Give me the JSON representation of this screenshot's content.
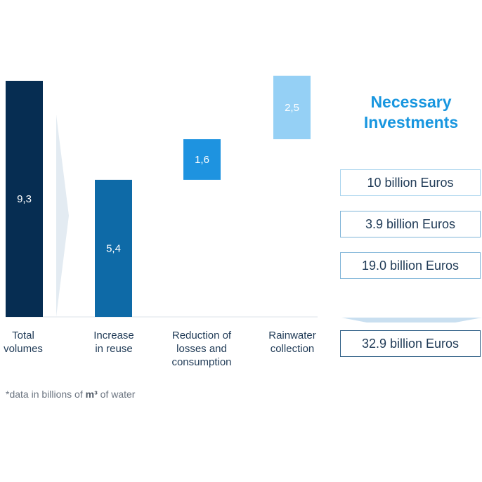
{
  "chart_data": {
    "type": "bar",
    "categories": [
      "Total\nvolumes",
      "Increase\nin reuse",
      "Reduction of\nlosses and\nconsumption",
      "Rainwater\ncollection"
    ],
    "values": [
      9.3,
      5.4,
      1.6,
      2.5
    ],
    "value_labels": [
      "9,3",
      "5,4",
      "1,6",
      "2,5"
    ],
    "colors": [
      "#062d52",
      "#0e6aa7",
      "#1e93e0",
      "#95d0f5"
    ],
    "ylim": [
      0,
      9.3
    ]
  },
  "footnote": {
    "prefix": "*data in billions of ",
    "unit": "m³",
    "suffix": " of water"
  },
  "investments": {
    "title": "Necessary\nInvestments",
    "items": [
      "10 billion Euros",
      "3.9 billion Euros",
      "19.0 billion Euros"
    ],
    "total": "32.9 billion Euros"
  }
}
